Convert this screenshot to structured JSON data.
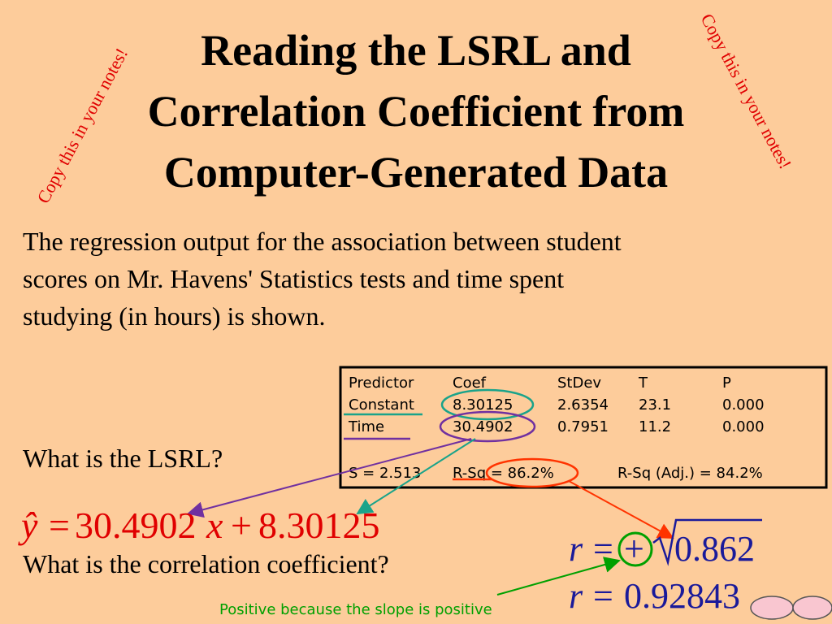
{
  "title": {
    "lines": [
      "Reading the LSRL and",
      "Correlation Coefficient from",
      "Computer-Generated Data"
    ]
  },
  "notes": {
    "left": "Copy this in your notes!",
    "right": "Copy this in your notes!"
  },
  "intro": {
    "lines": [
      "The regression output for the association between student",
      "scores on Mr. Havens' Statistics tests and time spent",
      "studying (in hours) is shown."
    ]
  },
  "table": {
    "header": [
      "Predictor",
      "Coef",
      "StDev",
      "T",
      "P"
    ],
    "rows": [
      [
        "Constant",
        "8.30125",
        "2.6354",
        "23.1",
        "0.000"
      ],
      [
        "Time",
        "30.4902",
        "0.7951",
        "11.2",
        "0.000"
      ]
    ],
    "footer": [
      "S = 2.513",
      "R-Sq = 86.2%",
      "R-Sq (Adj.) = 84.2%"
    ]
  },
  "questions": {
    "lsrl": "What is the LSRL?",
    "correlation": "What is the correlation coefficient?"
  },
  "lsrl_equation": {
    "y_hat": "ŷ",
    "equals": "=",
    "slope": "30.4902",
    "x": "x",
    "plus": "+",
    "intercept": "8.30125"
  },
  "r_equation_1": {
    "r": "r",
    "equals": "=",
    "sign": "+",
    "radicand": "0.862"
  },
  "r_equation_2": {
    "r": "r",
    "equals": "=",
    "value": "0.92843"
  },
  "annotation": "Positive because the slope is positive"
}
